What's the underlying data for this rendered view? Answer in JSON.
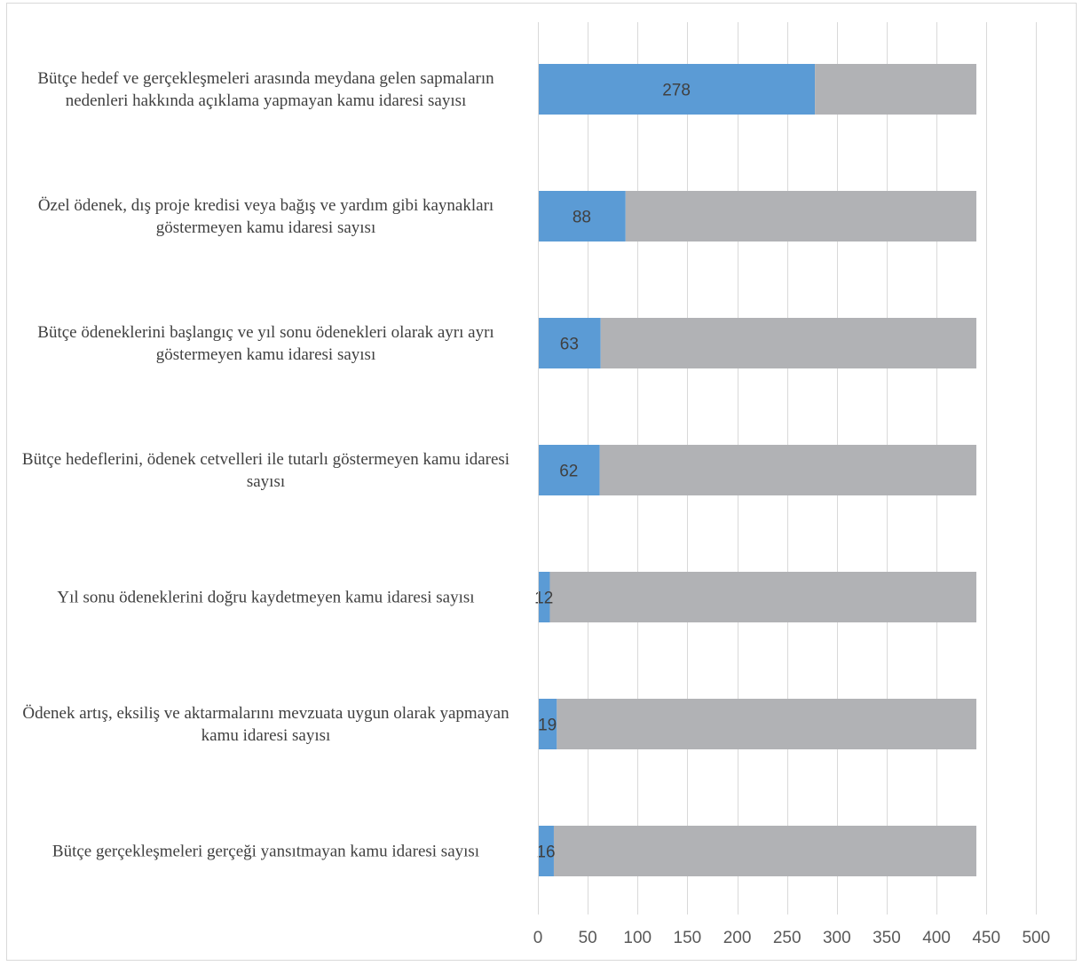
{
  "chart_data": {
    "type": "bar",
    "orientation": "horizontal",
    "stacked": true,
    "categories": [
      "Bütçe hedef ve gerçekleşmeleri arasında meydana gelen sapmaların nedenleri hakkında açıklama yapmayan kamu idaresi sayısı",
      "Özel ödenek, dış proje kredisi veya bağış ve yardım gibi kaynakları göstermeyen kamu idaresi sayısı",
      "Bütçe ödeneklerini başlangıç ve yıl sonu ödenekleri olarak ayrı ayrı göstermeyen kamu idaresi sayısı",
      "Bütçe hedeflerini, ödenek cetvelleri ile tutarlı göstermeyen kamu idaresi sayısı",
      "Yıl sonu ödeneklerini doğru kaydetmeyen kamu idaresi sayısı",
      "Ödenek artış, eksiliş ve aktarmalarını mevzuata uygun olarak yapmayan kamu idaresi sayısı",
      "Bütçe gerçekleşmeleri gerçeği yansıtmayan kamu idaresi sayısı"
    ],
    "series": [
      {
        "color": "#5b9bd5",
        "values": [
          278,
          88,
          63,
          62,
          12,
          19,
          16
        ],
        "data_labels": [
          "278",
          "88",
          "63",
          "62",
          "12",
          "19",
          "16"
        ]
      },
      {
        "color": "#b1b2b5",
        "values": [
          162,
          352,
          377,
          378,
          428,
          421,
          424
        ]
      }
    ],
    "xlim": [
      0,
      500
    ],
    "x_ticks": [
      "0",
      "50",
      "100",
      "150",
      "200",
      "250",
      "300",
      "350",
      "400",
      "450",
      "500"
    ],
    "title": "",
    "xlabel": "",
    "ylabel": "",
    "grid": true,
    "legend": "none"
  }
}
